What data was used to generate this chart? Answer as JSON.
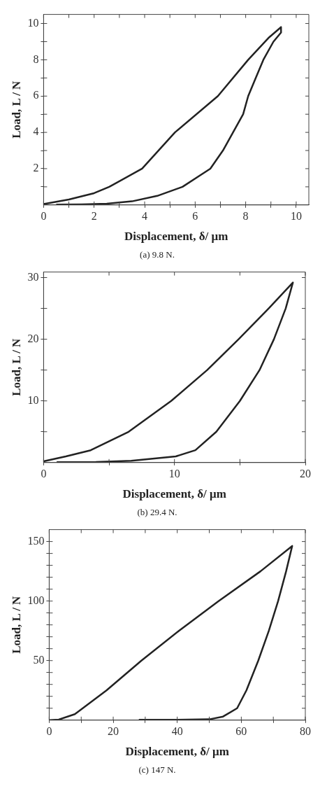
{
  "chart_data": [
    {
      "type": "line",
      "title": "(a) 9.8 N.",
      "xlabel": "Displacement, δ/ μm",
      "ylabel": "Load, L / N",
      "xlim": [
        0,
        10.5
      ],
      "ylim": [
        0,
        10.5
      ],
      "xticks": [
        0,
        {
          "value": 1,
          "label": null
        },
        2,
        {
          "value": 3,
          "label": null
        },
        4,
        {
          "value": 5,
          "label": null
        },
        6,
        {
          "value": 7,
          "label": null
        },
        8,
        {
          "value": 9,
          "label": null
        },
        10
      ],
      "yticks": [
        {
          "value": 1,
          "label": null
        },
        2,
        {
          "value": 3,
          "label": null
        },
        4,
        {
          "value": 5,
          "label": null
        },
        6,
        {
          "value": 7,
          "label": null
        },
        8,
        {
          "value": 9,
          "label": null
        },
        10
      ],
      "marker": "none",
      "series": [
        {
          "color": "#222222",
          "x": [
            0,
            1,
            2,
            2.6,
            3.9,
            5.2,
            6.9,
            8.1,
            8.9,
            9.4,
            9.4,
            9.1,
            8.7,
            8.4,
            8.1,
            7.9,
            7.5,
            7.1,
            6.6,
            5.5,
            4.5,
            3.5,
            2.5,
            1.5,
            0.5
          ],
          "values": [
            0.05,
            0.3,
            0.65,
            1,
            2,
            4,
            6,
            8,
            9.2,
            9.8,
            9.5,
            9,
            8,
            7,
            6,
            5,
            4,
            3,
            2,
            1,
            0.5,
            0.2,
            0.07,
            0.03,
            0.02
          ]
        }
      ]
    },
    {
      "type": "line",
      "title": "(b) 29.4 N.",
      "xlabel": "Displacement, δ/ μm",
      "ylabel": "Load, L / N",
      "xlim": [
        0,
        20
      ],
      "ylim": [
        0,
        30.9
      ],
      "xticks": [
        0,
        {
          "value": 5,
          "label": null
        },
        10,
        {
          "value": 15,
          "label": null
        },
        20
      ],
      "yticks": [
        {
          "value": 5,
          "label": null
        },
        10,
        {
          "value": 15,
          "label": null
        },
        20,
        {
          "value": 25,
          "label": null
        },
        30
      ],
      "marker": "none",
      "series": [
        {
          "color": "#222222",
          "x": [
            0,
            1.7,
            3.6,
            6.5,
            9.75,
            12.5,
            14.9,
            17.2,
            19.05,
            18.5,
            17.6,
            16.5,
            15,
            13.2,
            11.6,
            10.1,
            6.7,
            4,
            1
          ],
          "values": [
            0.2,
            1,
            2,
            5,
            10,
            15,
            20,
            25,
            29.2,
            25,
            20,
            15,
            10,
            5,
            2,
            1,
            0.3,
            0.1,
            0.05
          ]
        }
      ]
    },
    {
      "type": "line",
      "title": "(c) 147 N.",
      "xlabel": "Displacement, δ/ μm",
      "ylabel": "Load, L / N",
      "xlim": [
        0,
        80
      ],
      "ylim": [
        0,
        160
      ],
      "xticks": [
        0,
        {
          "value": 10,
          "label": null
        },
        20,
        {
          "value": 30,
          "label": null
        },
        40,
        {
          "value": 50,
          "label": null
        },
        60,
        {
          "value": 70,
          "label": null
        },
        80
      ],
      "yticks": [
        {
          "value": 10,
          "label": null
        },
        {
          "value": 20,
          "label": null
        },
        {
          "value": 30,
          "label": null
        },
        {
          "value": 40,
          "label": null
        },
        50,
        {
          "value": 60,
          "label": null
        },
        {
          "value": 70,
          "label": null
        },
        {
          "value": 80,
          "label": null
        },
        {
          "value": 90,
          "label": null
        },
        100,
        {
          "value": 110,
          "label": null
        },
        {
          "value": 120,
          "label": null
        },
        {
          "value": 130,
          "label": null
        },
        {
          "value": 140,
          "label": null
        },
        150
      ],
      "marker": "none",
      "series": [
        {
          "color": "#222222",
          "x": [
            0,
            3,
            8,
            17.9,
            28.8,
            40.5,
            52.9,
            66,
            75.9,
            74,
            71.5,
            68.6,
            65.3,
            61.6,
            58.7,
            54.3,
            50,
            40,
            28
          ],
          "values": [
            0,
            0.5,
            5,
            25,
            50,
            75,
            100,
            125,
            146.3,
            125,
            100,
            75,
            50,
            25,
            10,
            3,
            0.7,
            0.3,
            0.3
          ]
        }
      ]
    }
  ]
}
